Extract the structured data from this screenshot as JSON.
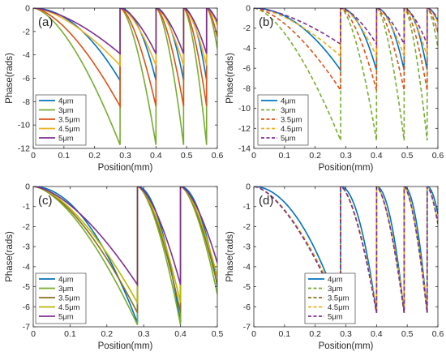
{
  "chart_data": [
    {
      "panel_label": "(a)",
      "type": "line",
      "xlabel": "Position(mm)",
      "ylabel": "Phase(rads)",
      "xlim": [
        0,
        0.6
      ],
      "ylim": [
        -12,
        0
      ],
      "xticks": [
        0,
        0.1,
        0.2,
        0.3,
        0.4,
        0.5,
        0.6
      ],
      "xtick_labels": [
        "0",
        "0.1",
        "0.2",
        "0.3",
        "0.4",
        "0.5",
        "0.6"
      ],
      "yticks": [
        0,
        -2,
        -4,
        -6,
        -8,
        -10,
        -12
      ],
      "ytick_labels": [
        "0",
        "-2",
        "-4",
        "-6",
        "-8",
        "-10",
        "-12"
      ],
      "legend_position": "bottom-left",
      "resets_x": [
        0.283,
        0.4,
        0.49,
        0.565
      ],
      "series": [
        {
          "name": "4μm",
          "color": "#0072BD",
          "style": "solid",
          "min_phase": -6.2
        },
        {
          "name": "3μm",
          "color": "#77AC30",
          "style": "solid",
          "min_phase": -11.7
        },
        {
          "name": "3.5μm",
          "color": "#D95319",
          "style": "solid",
          "min_phase": -8.4
        },
        {
          "name": "4.5μm",
          "color": "#EDB120",
          "style": "solid",
          "min_phase": -4.9
        },
        {
          "name": "5μm",
          "color": "#7E2F8E",
          "style": "solid",
          "min_phase": -3.9
        }
      ]
    },
    {
      "panel_label": "(b)",
      "type": "line",
      "xlabel": "Position(mm)",
      "ylabel": "Phase(rads)",
      "xlim": [
        0,
        0.6
      ],
      "ylim": [
        -14,
        0
      ],
      "xticks": [
        0,
        0.1,
        0.2,
        0.3,
        0.4,
        0.5,
        0.6
      ],
      "xtick_labels": [
        "0",
        "0.1",
        "0.2",
        "0.3",
        "0.4",
        "0.5",
        "0.6"
      ],
      "yticks": [
        0,
        -2,
        -4,
        -6,
        -8,
        -10,
        -12,
        -14
      ],
      "ytick_labels": [
        "0",
        "-2",
        "-4",
        "-6",
        "-8",
        "-10",
        "-12",
        "-14"
      ],
      "legend_position": "bottom-left",
      "resets_x": [
        0.283,
        0.4,
        0.49,
        0.565
      ],
      "series": [
        {
          "name": "4μm",
          "color": "#0072BD",
          "style": "solid",
          "min_phase": -6.2
        },
        {
          "name": "3μm",
          "color": "#77AC30",
          "style": "dashed",
          "min_phase": -13.2
        },
        {
          "name": "3.5μm",
          "color": "#D95319",
          "style": "dashed",
          "min_phase": -8.2
        },
        {
          "name": "4.5μm",
          "color": "#EDB120",
          "style": "dashed",
          "min_phase": -4.8
        },
        {
          "name": "5μm",
          "color": "#7E2F8E",
          "style": "dashed",
          "min_phase": -3.6
        }
      ]
    },
    {
      "panel_label": "(c)",
      "type": "line",
      "xlabel": "Position(mm)",
      "ylabel": "Phase(rads)",
      "xlim": [
        0,
        0.5
      ],
      "ylim": [
        -7,
        0
      ],
      "xticks": [
        0,
        0.1,
        0.2,
        0.3,
        0.4,
        0.5
      ],
      "xtick_labels": [
        "0",
        "0.1",
        "0.2",
        "0.3",
        "0.4",
        "0.5"
      ],
      "yticks": [
        0,
        -1,
        -2,
        -3,
        -4,
        -5,
        -6,
        -7
      ],
      "ytick_labels": [
        "0",
        "-1",
        "-2",
        "-3",
        "-4",
        "-5",
        "-6",
        "-7"
      ],
      "legend_position": "bottom-left",
      "resets_x": [
        0.283,
        0.4
      ],
      "series": [
        {
          "name": "4μm",
          "color": "#0072BD",
          "style": "solid",
          "min_phase": -6.8
        },
        {
          "name": "3μm",
          "color": "#77AC30",
          "style": "solid",
          "min_phase": -6.9
        },
        {
          "name": "3.5μm",
          "color": "#8C6D1F",
          "style": "solid",
          "min_phase": -6.3
        },
        {
          "name": "4.5μm",
          "color": "#B8B800",
          "style": "solid",
          "min_phase": -5.8
        },
        {
          "name": "5μm",
          "color": "#7E2F8E",
          "style": "solid",
          "min_phase": -4.9
        }
      ]
    },
    {
      "panel_label": "(d)",
      "type": "line",
      "xlabel": "Position(mm)",
      "ylabel": "Phase(rads)",
      "xlim": [
        0,
        0.6
      ],
      "ylim": [
        -7,
        0
      ],
      "xticks": [
        0,
        0.1,
        0.2,
        0.3,
        0.4,
        0.5,
        0.6
      ],
      "xtick_labels": [
        "0",
        "0.1",
        "0.2",
        "0.3",
        "0.4",
        "0.5",
        "0.6"
      ],
      "yticks": [
        0,
        -1,
        -2,
        -3,
        -4,
        -5,
        -6,
        -7
      ],
      "ytick_labels": [
        "0",
        "-1",
        "-2",
        "-3",
        "-4",
        "-5",
        "-6",
        "-7"
      ],
      "legend_position": "bottom-center",
      "resets_x": [
        0.283,
        0.4,
        0.49,
        0.565
      ],
      "series": [
        {
          "name": "4μm",
          "color": "#0072BD",
          "style": "solid",
          "min_phase": -6.3
        },
        {
          "name": "3μm",
          "color": "#77AC30",
          "style": "dashed",
          "min_phase": -6.3
        },
        {
          "name": "3.5μm",
          "color": "#8C6D1F",
          "style": "dashed",
          "min_phase": -6.3
        },
        {
          "name": "4.5μm",
          "color": "#EDB120",
          "style": "dashed",
          "min_phase": -6.1
        },
        {
          "name": "5μm",
          "color": "#7E2F8E",
          "style": "dashed",
          "min_phase": -6.3
        }
      ]
    }
  ]
}
